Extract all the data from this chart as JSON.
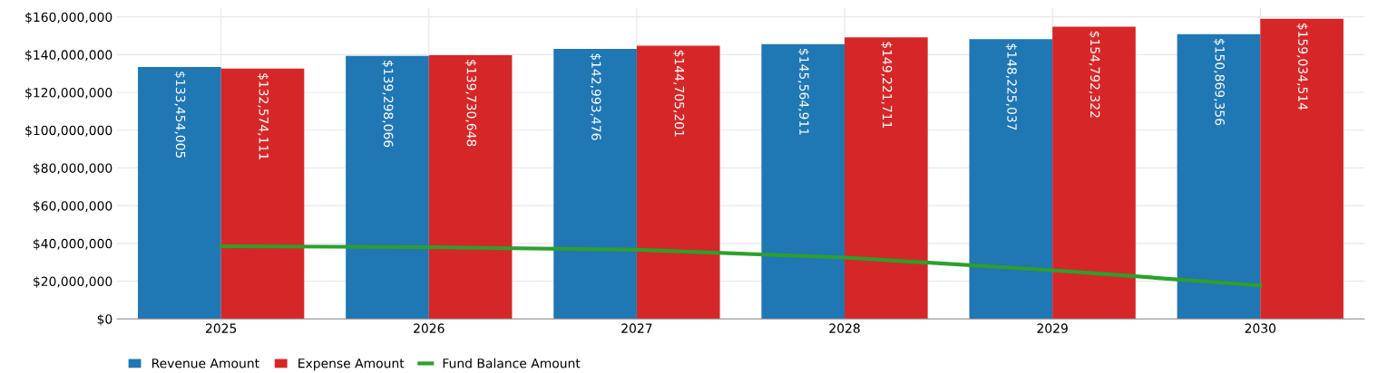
{
  "chart_data": {
    "type": "bar",
    "categories": [
      "2025",
      "2026",
      "2027",
      "2028",
      "2029",
      "2030"
    ],
    "series": [
      {
        "name": "Revenue Amount",
        "color": "#1f77b4",
        "values": [
          133454005,
          139298066,
          142993476,
          145564911,
          148225037,
          150869356
        ],
        "value_labels": [
          "$133,454,005",
          "$139,298,066",
          "$142,993,476",
          "$145,564,911",
          "$148,225,037",
          "$150,869,356"
        ]
      },
      {
        "name": "Expense Amount",
        "color": "#d62728",
        "values": [
          132574111,
          139730648,
          144705201,
          149221711,
          154792322,
          159034514
        ],
        "value_labels": [
          "$132,574,111",
          "$139,730,648",
          "$144,705,201",
          "$149,221,711",
          "$154,792,322",
          "$159,034,514"
        ]
      },
      {
        "name": "Fund Balance Amount",
        "type": "line",
        "color": "#2ca02c",
        "values": [
          38500000,
          38000000,
          36600000,
          32500000,
          25800000,
          17700000
        ]
      }
    ],
    "ylim": [
      0,
      165000000
    ],
    "yticks": [
      {
        "value": 0,
        "label": "$0"
      },
      {
        "value": 20000000,
        "label": "$20,000,000"
      },
      {
        "value": 40000000,
        "label": "$40,000,000"
      },
      {
        "value": 60000000,
        "label": "$60,000,000"
      },
      {
        "value": 80000000,
        "label": "$80,000,000"
      },
      {
        "value": 100000000,
        "label": "$100,000,000"
      },
      {
        "value": 120000000,
        "label": "$120,000,000"
      },
      {
        "value": 140000000,
        "label": "$140,000,000"
      },
      {
        "value": 160000000,
        "label": "$160,000,000"
      }
    ],
    "grid": true,
    "legend": "bottom left",
    "marker": "none",
    "line_style": "solid"
  }
}
